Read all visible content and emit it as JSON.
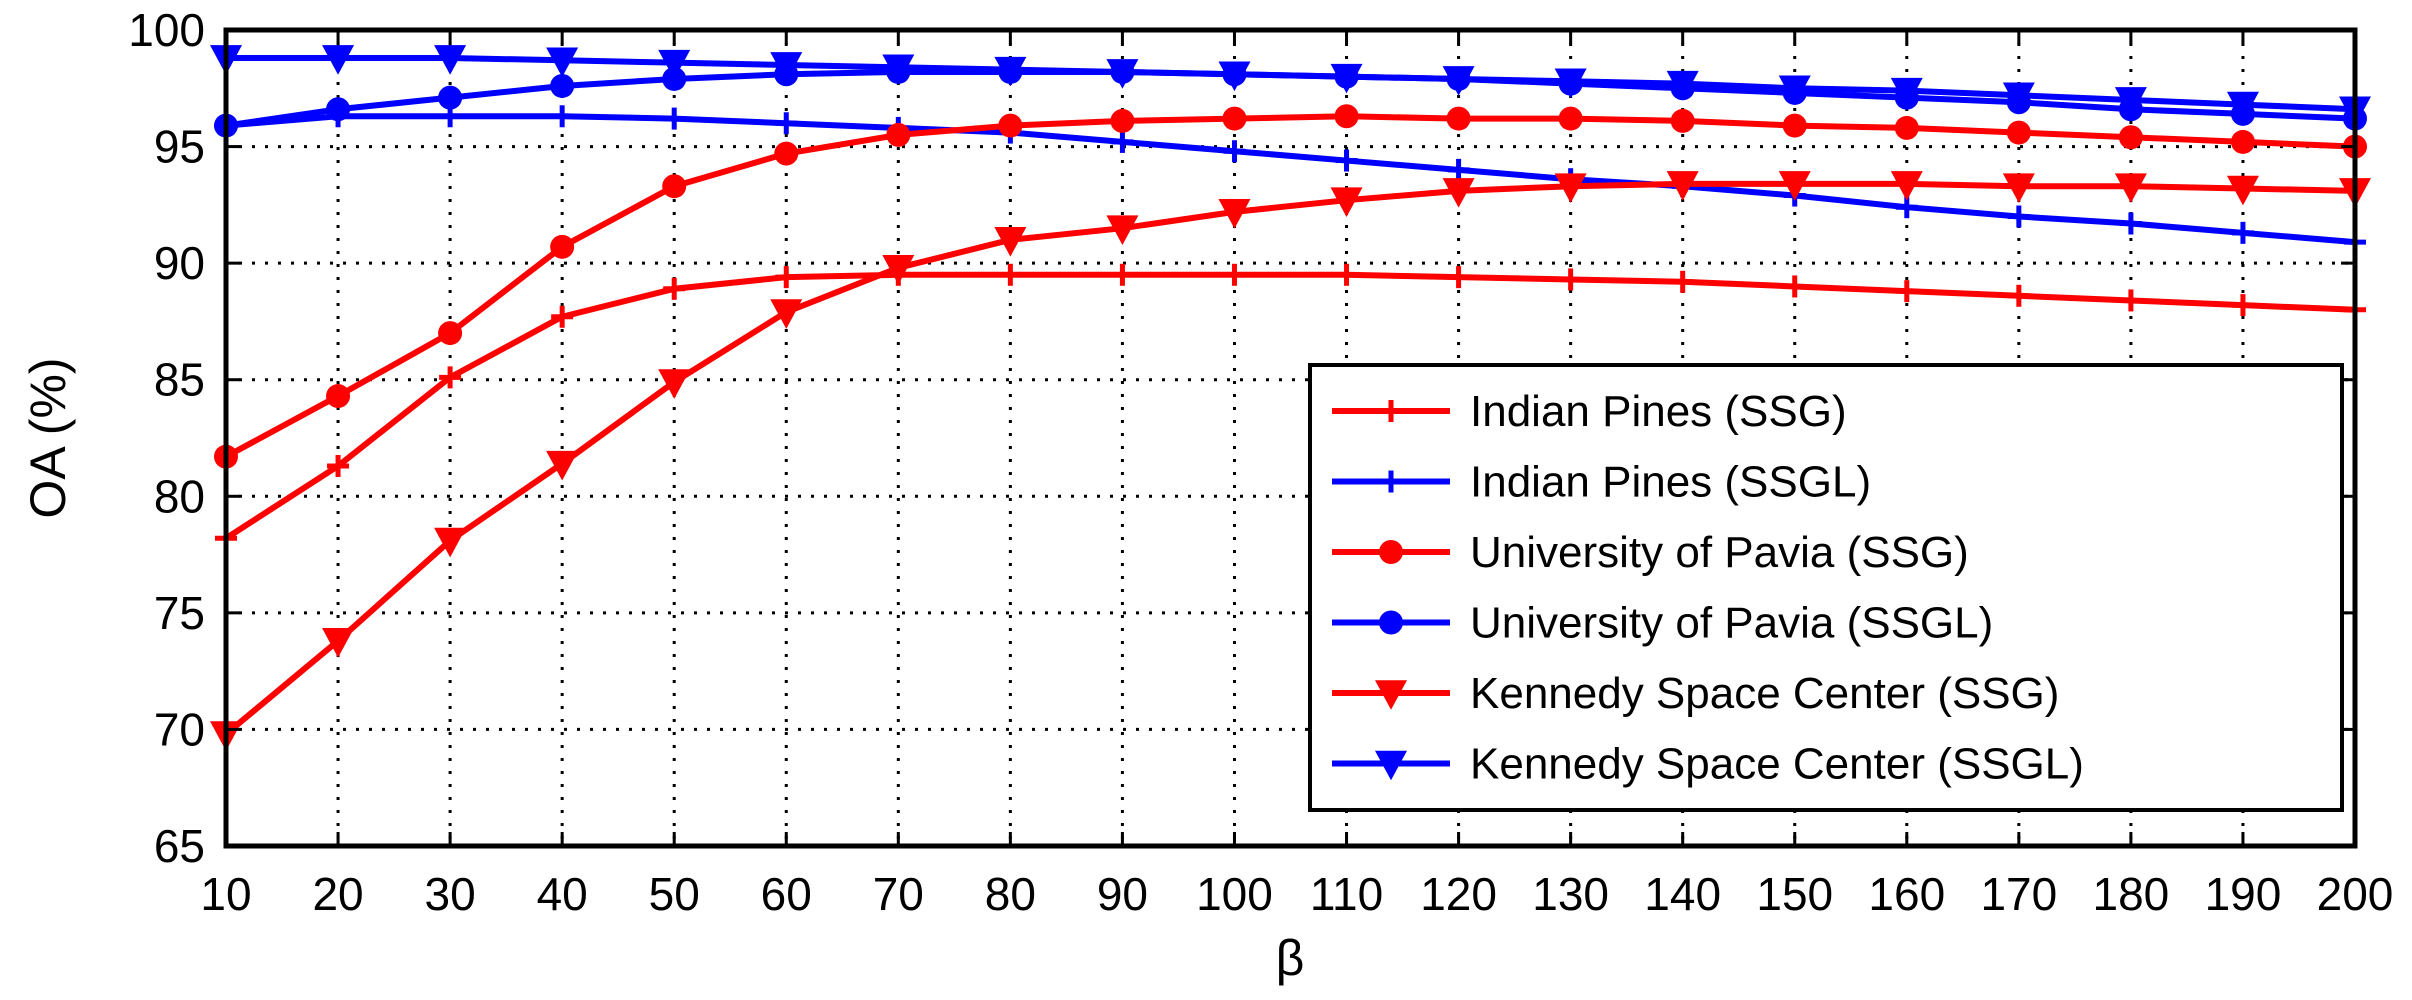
{
  "chart_data": {
    "type": "line",
    "title": "",
    "xlabel": "β",
    "ylabel": "OA (%)",
    "xlim": [
      10,
      200
    ],
    "ylim": [
      65,
      100
    ],
    "grid": true,
    "legend_position": "bottom-right",
    "x": [
      10,
      20,
      30,
      40,
      50,
      60,
      70,
      80,
      90,
      100,
      110,
      120,
      130,
      140,
      150,
      160,
      170,
      180,
      190,
      200
    ],
    "xticks": [
      "10",
      "20",
      "30",
      "40",
      "50",
      "60",
      "70",
      "80",
      "90",
      "100",
      "110",
      "120",
      "130",
      "140",
      "150",
      "160",
      "170",
      "180",
      "190",
      "200"
    ],
    "yticks": [
      "65",
      "70",
      "75",
      "80",
      "85",
      "90",
      "95",
      "100"
    ],
    "series": [
      {
        "name": "Indian Pines (SSG)",
        "color": "#ff0000",
        "marker": "plus",
        "values": [
          78.2,
          81.3,
          85.1,
          87.7,
          88.9,
          89.4,
          89.5,
          89.5,
          89.5,
          89.5,
          89.5,
          89.4,
          89.3,
          89.2,
          89.0,
          88.8,
          88.6,
          88.4,
          88.2,
          88.0
        ]
      },
      {
        "name": "Indian Pines (SSGL)",
        "color": "#0000ff",
        "marker": "plus",
        "values": [
          95.9,
          96.3,
          96.3,
          96.3,
          96.2,
          96.0,
          95.8,
          95.6,
          95.2,
          94.8,
          94.4,
          94.0,
          93.6,
          93.3,
          92.9,
          92.4,
          92.0,
          91.7,
          91.3,
          90.9
        ]
      },
      {
        "name": "University of Pavia (SSG)",
        "color": "#ff0000",
        "marker": "circle",
        "values": [
          81.7,
          84.3,
          87.0,
          90.7,
          93.3,
          94.7,
          95.5,
          95.9,
          96.1,
          96.2,
          96.3,
          96.2,
          96.2,
          96.1,
          95.9,
          95.8,
          95.6,
          95.4,
          95.2,
          95.0
        ]
      },
      {
        "name": "University of Pavia (SSGL)",
        "color": "#0000ff",
        "marker": "circle",
        "values": [
          95.9,
          96.6,
          97.1,
          97.6,
          97.9,
          98.1,
          98.2,
          98.2,
          98.2,
          98.1,
          98.0,
          97.9,
          97.7,
          97.5,
          97.3,
          97.1,
          96.9,
          96.6,
          96.4,
          96.2
        ]
      },
      {
        "name": "Kennedy Space Center (SSG)",
        "color": "#ff0000",
        "marker": "triangle-down",
        "values": [
          69.8,
          73.8,
          78.1,
          81.4,
          84.9,
          87.9,
          89.8,
          91.0,
          91.5,
          92.2,
          92.7,
          93.1,
          93.3,
          93.4,
          93.4,
          93.4,
          93.3,
          93.3,
          93.2,
          93.1
        ]
      },
      {
        "name": "Kennedy Space Center (SSGL)",
        "color": "#0000ff",
        "marker": "triangle-down",
        "values": [
          98.8,
          98.8,
          98.8,
          98.7,
          98.6,
          98.5,
          98.4,
          98.3,
          98.2,
          98.1,
          98.0,
          97.9,
          97.8,
          97.7,
          97.5,
          97.4,
          97.2,
          97.0,
          96.8,
          96.6
        ]
      }
    ]
  }
}
